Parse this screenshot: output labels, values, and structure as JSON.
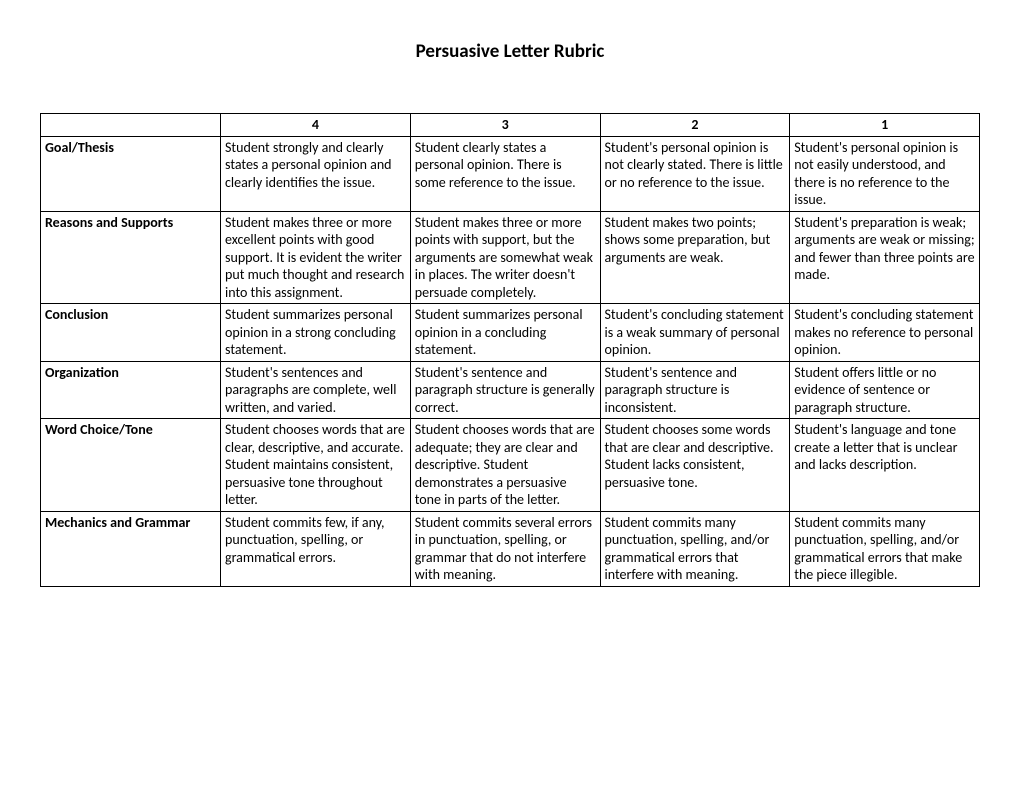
{
  "title": "Persuasive Letter Rubric",
  "columns": [
    "4",
    "3",
    "2",
    "1"
  ],
  "rows": [
    {
      "criteria": "Goal/Thesis",
      "cells": [
        "Student strongly and clearly states a personal opinion and clearly identifies the issue.",
        "Student clearly states a personal opinion. There is some reference to the issue.",
        "Student's personal opinion is not clearly stated. There is little or no reference to the issue.",
        "Student's personal opinion is not easily understood, and there is no reference to the issue."
      ]
    },
    {
      "criteria": "Reasons and Supports",
      "cells": [
        "Student makes three or more excellent points with good support. It is evident the writer put much thought and research into this assignment.",
        "Student makes three or more points with support, but the arguments are somewhat weak in places. The writer doesn't persuade completely.",
        "Student makes two points; shows some preparation, but arguments are weak.",
        "Student's preparation is weak; arguments are weak or missing; and fewer than three points are made."
      ]
    },
    {
      "criteria": "Conclusion",
      "cells": [
        "Student summarizes personal opinion in a strong concluding statement.",
        "Student summarizes personal opinion in a concluding statement.",
        "Student's concluding statement is a weak summary of personal opinion.",
        "Student's concluding statement makes no reference to personal opinion."
      ]
    },
    {
      "criteria": "Organization",
      "cells": [
        "Student's sentences and paragraphs are complete, well written, and varied.",
        "Student's sentence and paragraph structure is generally correct.",
        "Student's sentence and paragraph structure is inconsistent.",
        "Student offers little or no evidence of sentence or paragraph structure."
      ]
    },
    {
      "criteria": "Word Choice/Tone",
      "cells": [
        "Student chooses words that are clear, descriptive, and accurate. Student maintains consistent, persuasive tone throughout letter.",
        "Student chooses words that are adequate; they are clear and descriptive. Student demonstrates a persuasive tone in parts of the letter.",
        "Student chooses some words that are clear and descriptive. Student lacks consistent, persuasive tone.",
        "Student's language and tone create a letter that is unclear and lacks description."
      ]
    },
    {
      "criteria": "Mechanics and Grammar",
      "cells": [
        "Student commits few, if any, punctuation, spelling, or grammatical errors.",
        "Student commits several errors in punctuation, spelling, or grammar that do not interfere with meaning.",
        "Student commits many punctuation, spelling, and/or grammatical errors that interfere with meaning.",
        "Student commits many punctuation, spelling, and/or grammatical errors that make the piece illegible."
      ]
    }
  ]
}
